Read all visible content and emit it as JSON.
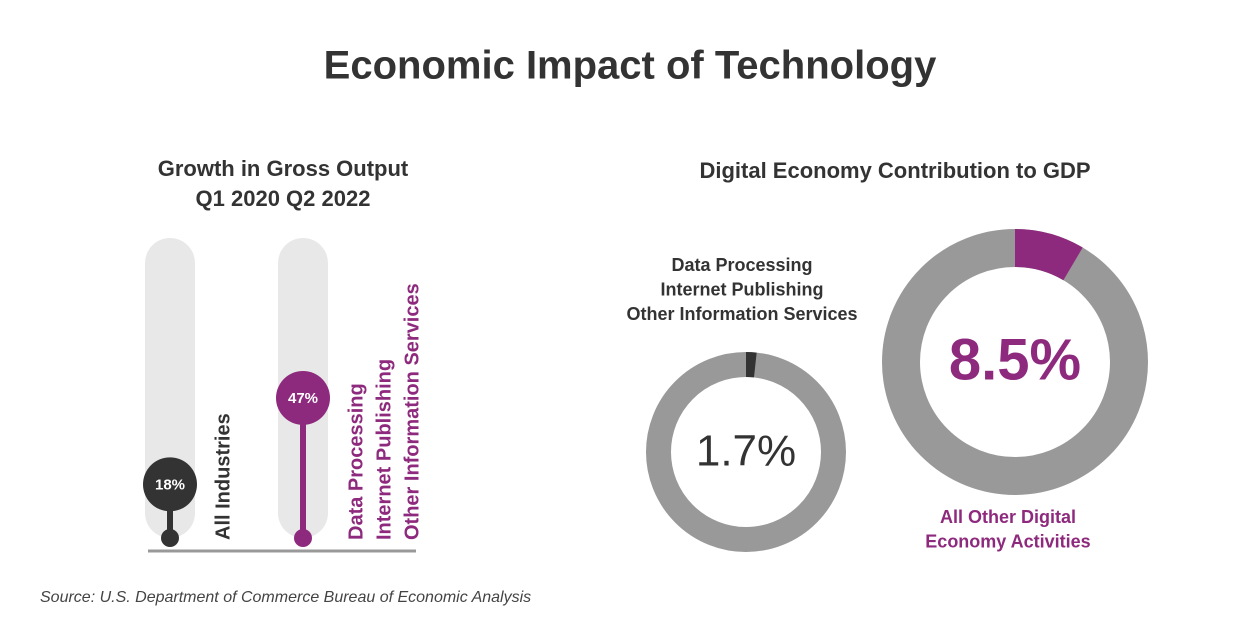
{
  "title": "Economic Impact of Technology",
  "source": "Source: U.S. Department of Commerce Bureau of Economic Analysis",
  "chart_data": [
    {
      "type": "lollipop",
      "title": "Growth in Gross Output",
      "subtitle": "Q1 2020 Q2 2022",
      "categories": [
        [
          "All Industries"
        ],
        [
          "Data Processing",
          "Internet Publishing",
          "Other Information Services"
        ]
      ],
      "values": [
        18,
        47
      ],
      "value_labels": [
        "18%",
        "47%"
      ],
      "colors": [
        "#333333",
        "#8e2a7d"
      ],
      "ylim": [
        0,
        100
      ]
    },
    {
      "type": "donut",
      "title": "Digital Economy Contribution to GDP",
      "labels": [
        [
          "Data Processing",
          "Internet Publishing",
          "Other Information Services"
        ],
        [
          "All Other Digital",
          "Economy Activities"
        ]
      ],
      "values": [
        1.7,
        8.5
      ],
      "value_labels": [
        "1.7%",
        "8.5%"
      ],
      "colors": [
        "#333333",
        "#8e2a7d"
      ]
    }
  ]
}
